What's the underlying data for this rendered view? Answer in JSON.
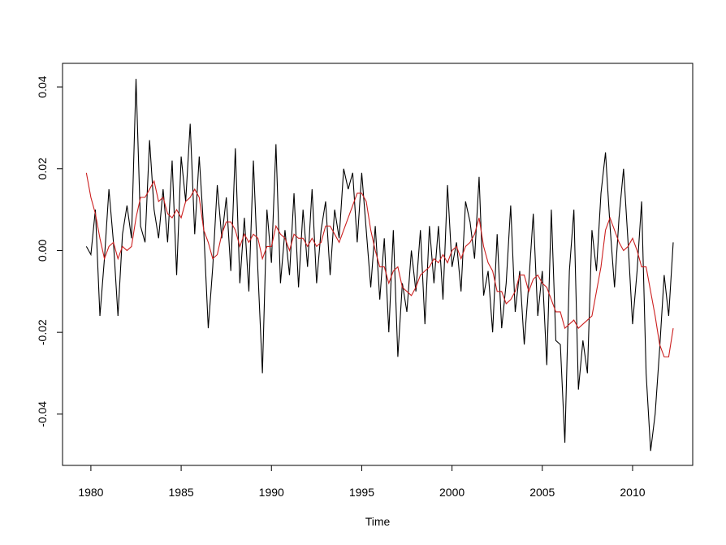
{
  "chart_data": {
    "type": "line",
    "xlabel": "Time",
    "x": [
      1979.75,
      1980,
      1980.25,
      1980.5,
      1980.75,
      1981,
      1981.25,
      1981.5,
      1981.75,
      1982,
      1982.25,
      1982.5,
      1982.75,
      1983,
      1983.25,
      1983.5,
      1983.75,
      1984,
      1984.25,
      1984.5,
      1984.75,
      1985,
      1985.25,
      1985.5,
      1985.75,
      1986,
      1986.25,
      1986.5,
      1986.75,
      1987,
      1987.25,
      1987.5,
      1987.75,
      1988,
      1988.25,
      1988.5,
      1988.75,
      1989,
      1989.25,
      1989.5,
      1989.75,
      1990,
      1990.25,
      1990.5,
      1990.75,
      1991,
      1991.25,
      1991.5,
      1991.75,
      1992,
      1992.25,
      1992.5,
      1992.75,
      1993,
      1993.25,
      1993.5,
      1993.75,
      1994,
      1994.25,
      1994.5,
      1994.75,
      1995,
      1995.25,
      1995.5,
      1995.75,
      1996,
      1996.25,
      1996.5,
      1996.75,
      1997,
      1997.25,
      1997.5,
      1997.75,
      1998,
      1998.25,
      1998.5,
      1998.75,
      1999,
      1999.25,
      1999.5,
      1999.75,
      2000,
      2000.25,
      2000.5,
      2000.75,
      2001,
      2001.25,
      2001.5,
      2001.75,
      2002,
      2002.25,
      2002.5,
      2002.75,
      2003,
      2003.25,
      2003.5,
      2003.75,
      2004,
      2004.25,
      2004.5,
      2004.75,
      2005,
      2005.25,
      2005.5,
      2005.75,
      2006,
      2006.25,
      2006.5,
      2006.75,
      2007,
      2007.25,
      2007.5,
      2007.75,
      2008,
      2008.25,
      2008.5,
      2008.75,
      2009,
      2009.25,
      2009.5,
      2009.75,
      2010,
      2010.25,
      2010.5,
      2010.75,
      2011,
      2011.25,
      2011.5,
      2011.75,
      2012,
      2012.25
    ],
    "series": [
      {
        "color": "#000000",
        "values": [
          0.001,
          -0.001,
          0.01,
          -0.016,
          -0.002,
          0.015,
          0.002,
          -0.016,
          0.004,
          0.011,
          0.003,
          0.042,
          0.006,
          0.002,
          0.027,
          0.01,
          0.003,
          0.015,
          0.002,
          0.022,
          -0.006,
          0.023,
          0.012,
          0.031,
          0.004,
          0.023,
          0.005,
          -0.019,
          -0.004,
          0.016,
          0.003,
          0.013,
          -0.005,
          0.025,
          -0.008,
          0.008,
          -0.01,
          0.022,
          -0.005,
          -0.03,
          0.01,
          -0.003,
          0.026,
          -0.008,
          0.005,
          -0.006,
          0.014,
          -0.009,
          0.01,
          -0.004,
          0.015,
          -0.008,
          0.005,
          0.012,
          -0.006,
          0.01,
          0.003,
          0.02,
          0.015,
          0.019,
          0.002,
          0.019,
          0.005,
          -0.009,
          0.006,
          -0.012,
          0.003,
          -0.02,
          0.005,
          -0.026,
          -0.008,
          -0.015,
          0.0,
          -0.01,
          0.005,
          -0.018,
          0.006,
          -0.008,
          0.006,
          -0.012,
          0.016,
          -0.004,
          0.002,
          -0.01,
          0.012,
          0.007,
          -0.002,
          0.018,
          -0.011,
          -0.005,
          -0.02,
          0.004,
          -0.019,
          -0.008,
          0.011,
          -0.015,
          -0.005,
          -0.023,
          -0.008,
          0.009,
          -0.016,
          -0.005,
          -0.028,
          0.01,
          -0.022,
          -0.023,
          -0.047,
          -0.005,
          0.01,
          -0.034,
          -0.022,
          -0.03,
          0.005,
          -0.005,
          0.014,
          0.024,
          0.006,
          -0.009,
          0.008,
          0.02,
          0.002,
          -0.018,
          -0.005,
          0.012,
          -0.03,
          -0.049,
          -0.04,
          -0.024,
          -0.006,
          -0.016,
          0.002
        ]
      },
      {
        "color": "#cc1f1f",
        "values": [
          0.019,
          0.013,
          0.009,
          0.003,
          -0.002,
          0.001,
          0.002,
          -0.002,
          0.001,
          0.0,
          0.001,
          0.008,
          0.013,
          0.013,
          0.015,
          0.017,
          0.012,
          0.013,
          0.009,
          0.008,
          0.01,
          0.008,
          0.012,
          0.013,
          0.015,
          0.013,
          0.005,
          0.002,
          -0.002,
          -0.001,
          0.004,
          0.007,
          0.007,
          0.005,
          0.001,
          0.004,
          0.002,
          0.004,
          0.003,
          -0.002,
          0.001,
          0.001,
          0.006,
          0.004,
          0.003,
          0.0,
          0.004,
          0.003,
          0.003,
          0.001,
          0.003,
          0.001,
          0.002,
          0.006,
          0.006,
          0.004,
          0.002,
          0.005,
          0.008,
          0.011,
          0.014,
          0.014,
          0.012,
          0.005,
          0.0,
          -0.004,
          -0.004,
          -0.008,
          -0.005,
          -0.004,
          -0.009,
          -0.01,
          -0.011,
          -0.009,
          -0.006,
          -0.005,
          -0.004,
          -0.002,
          -0.003,
          -0.001,
          -0.003,
          0.0,
          0.001,
          -0.002,
          0.001,
          0.002,
          0.004,
          0.008,
          0.001,
          -0.003,
          -0.005,
          -0.01,
          -0.01,
          -0.013,
          -0.012,
          -0.01,
          -0.006,
          -0.006,
          -0.01,
          -0.007,
          -0.006,
          -0.008,
          -0.009,
          -0.012,
          -0.015,
          -0.015,
          -0.019,
          -0.018,
          -0.017,
          -0.019,
          -0.018,
          -0.017,
          -0.016,
          -0.01,
          -0.004,
          0.005,
          0.008,
          0.005,
          0.002,
          0.0,
          0.001,
          0.003,
          0.0,
          -0.004,
          -0.004,
          -0.01,
          -0.016,
          -0.023,
          -0.026,
          -0.026,
          -0.019
        ]
      }
    ],
    "xlim": [
      1978.43,
      2013.33
    ],
    "xticks": [
      1980,
      1985,
      1990,
      1995,
      2000,
      2005,
      2010
    ],
    "ylim": [
      -0.05254,
      0.04577
    ],
    "yticks": [
      -0.04,
      -0.02,
      {
        "value": 0,
        "label": "0.00"
      },
      0.02,
      0.04
    ]
  }
}
